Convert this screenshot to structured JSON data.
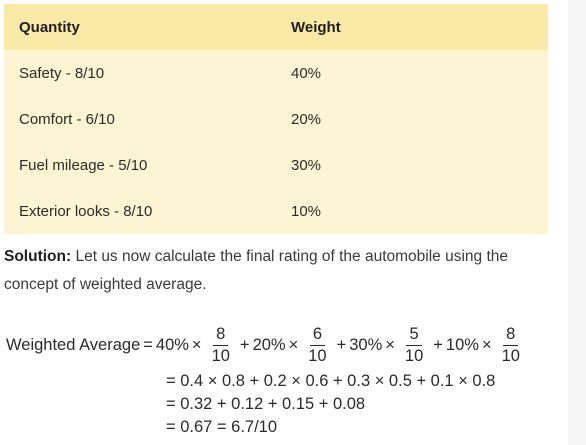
{
  "table": {
    "headers": [
      "Quantity",
      "Weight"
    ],
    "rows": [
      [
        "Safety - 8/10",
        "40%"
      ],
      [
        "Comfort - 6/10",
        "20%"
      ],
      [
        "Fuel mileage - 5/10",
        "30%"
      ],
      [
        "Exterior looks - 8/10",
        "10%"
      ]
    ]
  },
  "solution": {
    "label": "Solution:",
    "text": " Let us now calculate the final rating of the automobile using the concept of weighted average."
  },
  "math": {
    "lhs": "Weighted Average",
    "eq": "=",
    "terms": [
      {
        "pct": "40%",
        "num": "8",
        "den": "10"
      },
      {
        "pct": "20%",
        "num": "6",
        "den": "10"
      },
      {
        "pct": "30%",
        "num": "5",
        "den": "10"
      },
      {
        "pct": "10%",
        "num": "8",
        "den": "10"
      }
    ],
    "times": "×",
    "plus": "+",
    "lines": [
      "= 0.4 × 0.8 + 0.2 × 0.6 + 0.3 × 0.5 + 0.1 × 0.8",
      "= 0.32 + 0.12 + 0.15 + 0.08",
      "= 0.67 = 6.7/10"
    ]
  }
}
